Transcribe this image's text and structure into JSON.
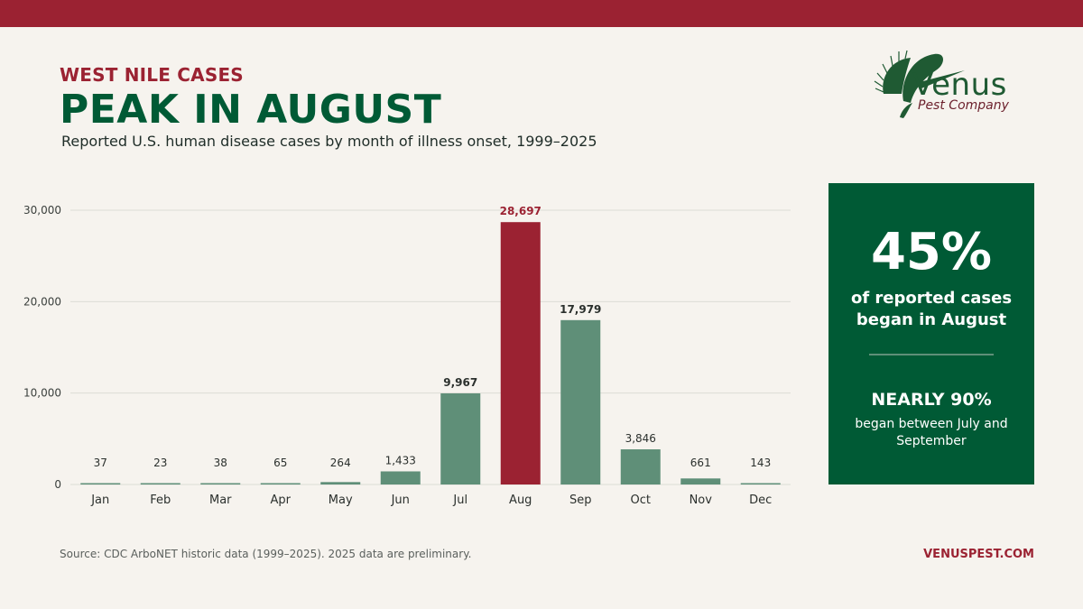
{
  "header": {
    "kicker": "WEST NILE CASES",
    "headline": "PEAK IN AUGUST",
    "subtitle": "Reported U.S. human disease cases by month of illness onset, 1999–2025"
  },
  "logo": {
    "name": "Venus",
    "tagline": "Pest Company",
    "icon": "leaf-icon",
    "color": "#1f5a33"
  },
  "colors": {
    "accent": "#9b2232",
    "brand": "#005a35",
    "bar": "#5f8f78",
    "highlight_bar": "#9b2232",
    "background": "#f6f3ee"
  },
  "chart_data": {
    "type": "bar",
    "categories": [
      "Jan",
      "Feb",
      "Mar",
      "Apr",
      "May",
      "Jun",
      "Jul",
      "Aug",
      "Sep",
      "Oct",
      "Nov",
      "Dec"
    ],
    "values": [
      37,
      23,
      38,
      65,
      264,
      1433,
      9967,
      28697,
      17979,
      3846,
      661,
      143
    ],
    "value_labels": [
      "37",
      "23",
      "38",
      "65",
      "264",
      "1,433",
      "9,967",
      "28,697",
      "17,979",
      "3,846",
      "661",
      "143"
    ],
    "highlight_category": "Aug",
    "bold_labels": [
      "Jul",
      "Aug",
      "Sep"
    ],
    "ylim": [
      0,
      30000
    ],
    "yticks": [
      0,
      10000,
      20000,
      30000
    ],
    "ytick_labels": [
      "0",
      "10,000",
      "20,000",
      "30,000"
    ],
    "grid": true,
    "legend": "none",
    "title": "",
    "xlabel": "",
    "ylabel": ""
  },
  "panel": {
    "big_stat": "45%",
    "big_stat_text": "of reported cases began in August",
    "second_stat": "NEARLY 90%",
    "second_stat_text": "began between July and September"
  },
  "footer": {
    "source": "Source: CDC ArboNET historic data (1999–2025). 2025 data are preliminary.",
    "website": "VENUSPEST.COM"
  }
}
